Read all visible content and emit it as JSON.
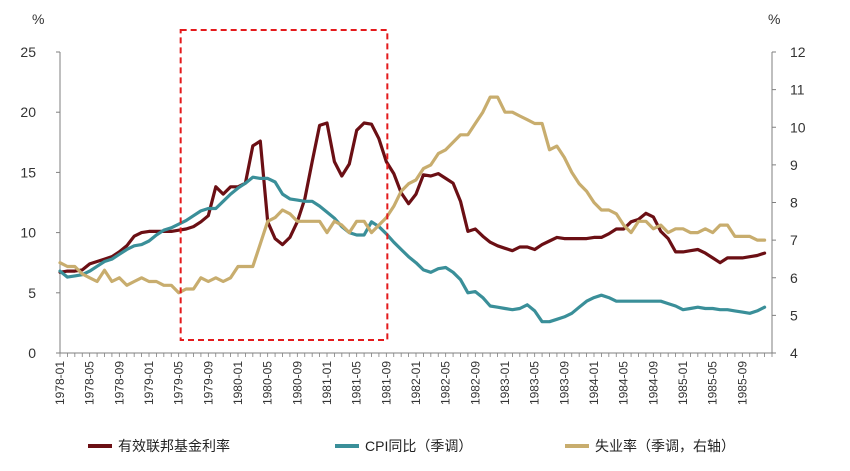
{
  "chart_data": {
    "type": "line",
    "title": "",
    "left_axis_unit": "%",
    "right_axis_unit": "%",
    "ylim_left": [
      0,
      25
    ],
    "yticks_left": [
      "0",
      "5",
      "10",
      "15",
      "20",
      "25"
    ],
    "ylim_right": [
      4,
      12
    ],
    "yticks_right": [
      "4",
      "5",
      "6",
      "7",
      "8",
      "9",
      "10",
      "11",
      "12"
    ],
    "x_start": "1978-01",
    "x_end": "1986-01",
    "x_tick_labels": [
      "1978-01",
      "1978-05",
      "1978-09",
      "1979-01",
      "1979-05",
      "1979-09",
      "1980-01",
      "1980-05",
      "1980-09",
      "1981-01",
      "1981-05",
      "1981-09",
      "1982-01",
      "1982-05",
      "1982-09",
      "1983-01",
      "1983-05",
      "1983-09",
      "1984-01",
      "1984-05",
      "1984-09",
      "1985-01",
      "1985-05",
      "1985-09"
    ],
    "highlight_box": {
      "from": "1979-05",
      "to": "1981-09",
      "style": "dashed",
      "color": "#e41a1c"
    },
    "series": [
      {
        "name": "有效联邦基金利率",
        "axis": "left",
        "color": "#6b0f14",
        "points": [
          [
            0,
            6.7
          ],
          [
            1,
            6.8
          ],
          [
            2,
            6.8
          ],
          [
            3,
            6.9
          ],
          [
            4,
            7.4
          ],
          [
            5,
            7.6
          ],
          [
            6,
            7.8
          ],
          [
            7,
            8.0
          ],
          [
            8,
            8.4
          ],
          [
            9,
            8.9
          ],
          [
            10,
            9.7
          ],
          [
            11,
            10.0
          ],
          [
            12,
            10.1
          ],
          [
            13,
            10.1
          ],
          [
            14,
            10.1
          ],
          [
            15,
            10.1
          ],
          [
            16,
            10.2
          ],
          [
            17,
            10.3
          ],
          [
            18,
            10.5
          ],
          [
            19,
            10.9
          ],
          [
            20,
            11.4
          ],
          [
            21,
            13.8
          ],
          [
            22,
            13.2
          ],
          [
            23,
            13.8
          ],
          [
            24,
            13.8
          ],
          [
            25,
            14.1
          ],
          [
            26,
            17.2
          ],
          [
            27,
            17.6
          ],
          [
            28,
            10.9
          ],
          [
            29,
            9.5
          ],
          [
            30,
            9.0
          ],
          [
            31,
            9.6
          ],
          [
            32,
            10.9
          ],
          [
            33,
            12.8
          ],
          [
            34,
            15.9
          ],
          [
            35,
            18.9
          ],
          [
            36,
            19.1
          ],
          [
            37,
            15.9
          ],
          [
            38,
            14.7
          ],
          [
            39,
            15.7
          ],
          [
            40,
            18.5
          ],
          [
            41,
            19.1
          ],
          [
            42,
            19.0
          ],
          [
            43,
            17.8
          ],
          [
            44,
            15.9
          ],
          [
            45,
            14.9
          ],
          [
            46,
            13.3
          ],
          [
            47,
            12.4
          ],
          [
            48,
            13.2
          ],
          [
            49,
            14.8
          ],
          [
            50,
            14.7
          ],
          [
            51,
            14.9
          ],
          [
            52,
            14.5
          ],
          [
            53,
            14.1
          ],
          [
            54,
            12.6
          ],
          [
            55,
            10.1
          ],
          [
            56,
            10.3
          ],
          [
            57,
            9.7
          ],
          [
            58,
            9.2
          ],
          [
            59,
            8.9
          ],
          [
            60,
            8.7
          ],
          [
            61,
            8.5
          ],
          [
            62,
            8.8
          ],
          [
            63,
            8.8
          ],
          [
            64,
            8.6
          ],
          [
            65,
            9.0
          ],
          [
            66,
            9.3
          ],
          [
            67,
            9.6
          ],
          [
            68,
            9.5
          ],
          [
            69,
            9.5
          ],
          [
            70,
            9.5
          ],
          [
            71,
            9.5
          ],
          [
            72,
            9.6
          ],
          [
            73,
            9.6
          ],
          [
            74,
            9.9
          ],
          [
            75,
            10.3
          ],
          [
            76,
            10.3
          ],
          [
            77,
            10.9
          ],
          [
            78,
            11.1
          ],
          [
            79,
            11.6
          ],
          [
            80,
            11.3
          ],
          [
            81,
            10.1
          ],
          [
            82,
            9.5
          ],
          [
            83,
            8.4
          ],
          [
            84,
            8.4
          ],
          [
            85,
            8.5
          ],
          [
            86,
            8.6
          ],
          [
            87,
            8.3
          ],
          [
            88,
            7.9
          ],
          [
            89,
            7.5
          ],
          [
            90,
            7.9
          ],
          [
            91,
            7.9
          ],
          [
            92,
            7.9
          ],
          [
            93,
            8.0
          ],
          [
            94,
            8.1
          ],
          [
            95,
            8.3
          ]
        ]
      },
      {
        "name": "CPI同比（季调）",
        "axis": "left",
        "color": "#3a8f99",
        "points": [
          [
            0,
            6.8
          ],
          [
            1,
            6.3
          ],
          [
            2,
            6.4
          ],
          [
            3,
            6.5
          ],
          [
            4,
            6.8
          ],
          [
            5,
            7.2
          ],
          [
            6,
            7.6
          ],
          [
            7,
            7.8
          ],
          [
            8,
            8.2
          ],
          [
            9,
            8.6
          ],
          [
            10,
            8.9
          ],
          [
            11,
            9.0
          ],
          [
            12,
            9.3
          ],
          [
            13,
            9.8
          ],
          [
            14,
            10.2
          ],
          [
            15,
            10.4
          ],
          [
            16,
            10.7
          ],
          [
            17,
            11.0
          ],
          [
            18,
            11.4
          ],
          [
            19,
            11.8
          ],
          [
            20,
            12.0
          ],
          [
            21,
            12.0
          ],
          [
            22,
            12.6
          ],
          [
            23,
            13.2
          ],
          [
            24,
            13.7
          ],
          [
            25,
            14.1
          ],
          [
            26,
            14.6
          ],
          [
            27,
            14.5
          ],
          [
            28,
            14.5
          ],
          [
            29,
            14.2
          ],
          [
            30,
            13.2
          ],
          [
            31,
            12.8
          ],
          [
            32,
            12.7
          ],
          [
            33,
            12.6
          ],
          [
            34,
            12.6
          ],
          [
            35,
            12.2
          ],
          [
            36,
            11.7
          ],
          [
            37,
            11.2
          ],
          [
            38,
            10.5
          ],
          [
            39,
            10.0
          ],
          [
            40,
            9.8
          ],
          [
            41,
            9.8
          ],
          [
            42,
            10.9
          ],
          [
            43,
            10.5
          ],
          [
            44,
            9.9
          ],
          [
            45,
            9.2
          ],
          [
            46,
            8.6
          ],
          [
            47,
            8.0
          ],
          [
            48,
            7.5
          ],
          [
            49,
            6.9
          ],
          [
            50,
            6.7
          ],
          [
            51,
            7.0
          ],
          [
            52,
            7.1
          ],
          [
            53,
            6.7
          ],
          [
            54,
            6.1
          ],
          [
            55,
            5.0
          ],
          [
            56,
            5.1
          ],
          [
            57,
            4.6
          ],
          [
            58,
            3.9
          ],
          [
            59,
            3.8
          ],
          [
            60,
            3.7
          ],
          [
            61,
            3.6
          ],
          [
            62,
            3.7
          ],
          [
            63,
            4.0
          ],
          [
            64,
            3.5
          ],
          [
            65,
            2.6
          ],
          [
            66,
            2.6
          ],
          [
            67,
            2.8
          ],
          [
            68,
            3.0
          ],
          [
            69,
            3.3
          ],
          [
            70,
            3.8
          ],
          [
            71,
            4.3
          ],
          [
            72,
            4.6
          ],
          [
            73,
            4.8
          ],
          [
            74,
            4.6
          ],
          [
            75,
            4.3
          ],
          [
            76,
            4.3
          ],
          [
            77,
            4.3
          ],
          [
            78,
            4.3
          ],
          [
            79,
            4.3
          ],
          [
            80,
            4.3
          ],
          [
            81,
            4.3
          ],
          [
            82,
            4.1
          ],
          [
            83,
            3.9
          ],
          [
            84,
            3.6
          ],
          [
            85,
            3.7
          ],
          [
            86,
            3.8
          ],
          [
            87,
            3.7
          ],
          [
            88,
            3.7
          ],
          [
            89,
            3.6
          ],
          [
            90,
            3.6
          ],
          [
            91,
            3.5
          ],
          [
            92,
            3.4
          ],
          [
            93,
            3.3
          ],
          [
            94,
            3.5
          ],
          [
            95,
            3.8
          ]
        ]
      },
      {
        "name": "失业率（季调，右轴）",
        "axis": "right",
        "color": "#c8ad6e",
        "points": [
          [
            0,
            6.4
          ],
          [
            1,
            6.3
          ],
          [
            2,
            6.3
          ],
          [
            3,
            6.1
          ],
          [
            4,
            6.0
          ],
          [
            5,
            5.9
          ],
          [
            6,
            6.2
          ],
          [
            7,
            5.9
          ],
          [
            8,
            6.0
          ],
          [
            9,
            5.8
          ],
          [
            10,
            5.9
          ],
          [
            11,
            6.0
          ],
          [
            12,
            5.9
          ],
          [
            13,
            5.9
          ],
          [
            14,
            5.8
          ],
          [
            15,
            5.8
          ],
          [
            16,
            5.6
          ],
          [
            17,
            5.7
          ],
          [
            18,
            5.7
          ],
          [
            19,
            6.0
          ],
          [
            20,
            5.9
          ],
          [
            21,
            6.0
          ],
          [
            22,
            5.9
          ],
          [
            23,
            6.0
          ],
          [
            24,
            6.3
          ],
          [
            25,
            6.3
          ],
          [
            26,
            6.3
          ],
          [
            27,
            6.9
          ],
          [
            28,
            7.5
          ],
          [
            29,
            7.6
          ],
          [
            30,
            7.8
          ],
          [
            31,
            7.7
          ],
          [
            32,
            7.5
          ],
          [
            33,
            7.5
          ],
          [
            34,
            7.5
          ],
          [
            35,
            7.5
          ],
          [
            36,
            7.2
          ],
          [
            37,
            7.5
          ],
          [
            38,
            7.4
          ],
          [
            39,
            7.2
          ],
          [
            40,
            7.5
          ],
          [
            41,
            7.5
          ],
          [
            42,
            7.2
          ],
          [
            43,
            7.4
          ],
          [
            44,
            7.6
          ],
          [
            45,
            7.9
          ],
          [
            46,
            8.3
          ],
          [
            47,
            8.5
          ],
          [
            48,
            8.6
          ],
          [
            49,
            8.9
          ],
          [
            50,
            9.0
          ],
          [
            51,
            9.3
          ],
          [
            52,
            9.4
          ],
          [
            53,
            9.6
          ],
          [
            54,
            9.8
          ],
          [
            55,
            9.8
          ],
          [
            56,
            10.1
          ],
          [
            57,
            10.4
          ],
          [
            58,
            10.8
          ],
          [
            59,
            10.8
          ],
          [
            60,
            10.4
          ],
          [
            61,
            10.4
          ],
          [
            62,
            10.3
          ],
          [
            63,
            10.2
          ],
          [
            64,
            10.1
          ],
          [
            65,
            10.1
          ],
          [
            66,
            9.4
          ],
          [
            67,
            9.5
          ],
          [
            68,
            9.2
          ],
          [
            69,
            8.8
          ],
          [
            70,
            8.5
          ],
          [
            71,
            8.3
          ],
          [
            72,
            8.0
          ],
          [
            73,
            7.8
          ],
          [
            74,
            7.8
          ],
          [
            75,
            7.7
          ],
          [
            76,
            7.4
          ],
          [
            77,
            7.2
          ],
          [
            78,
            7.5
          ],
          [
            79,
            7.5
          ],
          [
            80,
            7.3
          ],
          [
            81,
            7.4
          ],
          [
            82,
            7.2
          ],
          [
            83,
            7.3
          ],
          [
            84,
            7.3
          ],
          [
            85,
            7.2
          ],
          [
            86,
            7.2
          ],
          [
            87,
            7.3
          ],
          [
            88,
            7.2
          ],
          [
            89,
            7.4
          ],
          [
            90,
            7.4
          ],
          [
            91,
            7.1
          ],
          [
            92,
            7.1
          ],
          [
            93,
            7.1
          ],
          [
            94,
            7.0
          ],
          [
            95,
            7.0
          ]
        ]
      }
    ]
  }
}
